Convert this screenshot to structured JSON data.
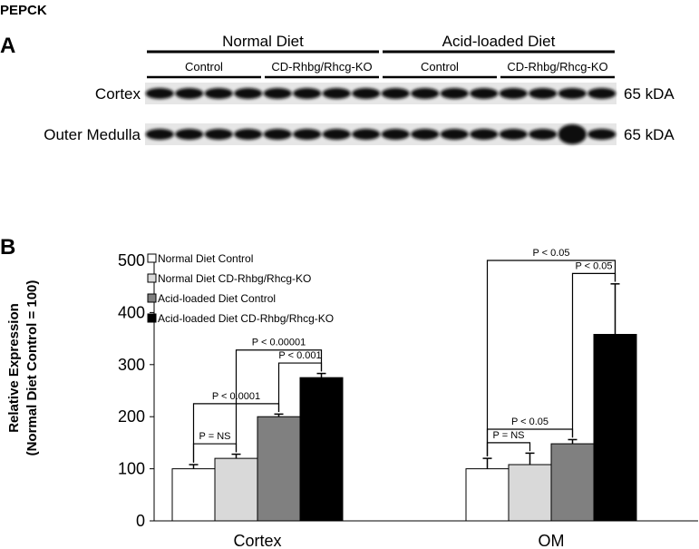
{
  "figure": {
    "title": "PEPCK",
    "panel_a": "A",
    "panel_b": "B",
    "blot": {
      "groups": [
        "Normal Diet",
        "Acid-loaded Diet"
      ],
      "subgroups": [
        "Control",
        "CD-Rhbg/Rhcg-KO",
        "Control",
        "CD-Rhbg/Rhcg-KO"
      ],
      "rows": [
        "Cortex",
        "Outer Medulla"
      ],
      "size_labels": [
        "65 kDA",
        "65 kDA"
      ]
    }
  },
  "chart_data": {
    "type": "bar",
    "ylabel": [
      "Relative Expression",
      "(Normal Diet Control = 100)"
    ],
    "categories": [
      "Cortex",
      "OM"
    ],
    "series": [
      {
        "name": "Normal Diet Control",
        "color": "#ffffff",
        "values": [
          100,
          100
        ],
        "errors": [
          8,
          20
        ]
      },
      {
        "name": "Normal Diet CD-Rhbg/Rhcg-KO",
        "color": "#d9d9d9",
        "values": [
          120,
          108
        ],
        "errors": [
          8,
          22
        ]
      },
      {
        "name": "Acid-loaded Diet Control",
        "color": "#808080",
        "values": [
          200,
          148
        ],
        "errors": [
          5,
          8
        ]
      },
      {
        "name": "Acid-loaded Diet CD-Rhbg/Rhcg-KO",
        "color": "#000000",
        "values": [
          275,
          358
        ],
        "errors": [
          8,
          97
        ]
      }
    ],
    "ylim": [
      0,
      500
    ],
    "yticks": [
      0,
      100,
      200,
      300,
      400,
      500
    ],
    "legend": "upper left",
    "annotations": [
      {
        "category": 0,
        "from": 0,
        "to": 1,
        "label": "P = NS"
      },
      {
        "category": 0,
        "from": 0,
        "to": 2,
        "label": "P < 0.0001"
      },
      {
        "category": 0,
        "from": 2,
        "to": 3,
        "label": "P < 0.001"
      },
      {
        "category": 0,
        "from": 1,
        "to": 3,
        "label": "P < 0.00001"
      },
      {
        "category": 1,
        "from": 0,
        "to": 1,
        "label": "P = NS"
      },
      {
        "category": 1,
        "from": 0,
        "to": 2,
        "label": "P < 0.05"
      },
      {
        "category": 1,
        "from": 2,
        "to": 3,
        "label": "P < 0.05"
      },
      {
        "category": 1,
        "from": 0,
        "to": 3,
        "label": "P < 0.05"
      }
    ]
  }
}
